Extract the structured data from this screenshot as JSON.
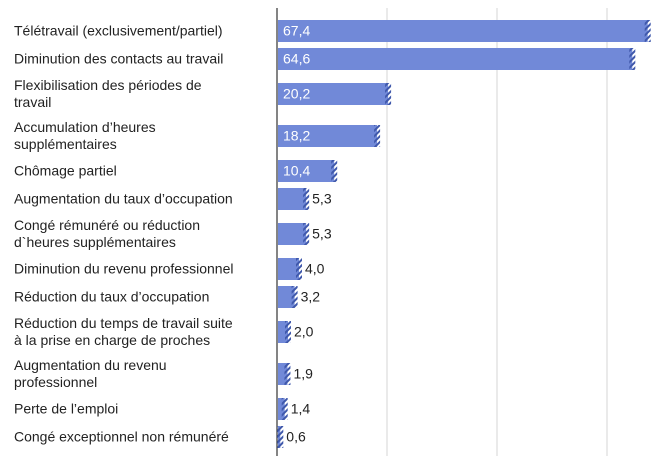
{
  "chart_data": {
    "type": "bar",
    "orientation": "horizontal",
    "categories": [
      "Télétravail (exclusivement/partiel)",
      "Diminution des contacts au travail",
      "Flexibilisation des périodes de\ntravail",
      "Accumulation d’heures\nsupplémentaires",
      "Chômage partiel",
      "Augmentation du taux d’occupation",
      "Congé rémunéré ou réduction\nd`heures supplémentaires",
      "Diminution du revenu professionnel",
      "Réduction du taux d’occupation",
      "Réduction du temps de travail suite\nà la prise en charge de proches",
      "Augmentation du revenu\nprofessionnel",
      "Perte de l’emploi",
      "Congé exceptionnel non rémunéré"
    ],
    "values": [
      67.4,
      64.6,
      20.2,
      18.2,
      10.4,
      5.3,
      5.3,
      4.0,
      3.2,
      2.0,
      1.9,
      1.4,
      0.6
    ],
    "value_labels": [
      "67,4",
      "64,6",
      "20,2",
      "18,2",
      "10,4",
      "5,3",
      "5,3",
      "4,0",
      "3,2",
      "2,0",
      "1,9",
      "1,4",
      "0,6"
    ],
    "color": "#7189d8",
    "hatch_color": "#3f58ab",
    "xlim": [
      0,
      70
    ],
    "xgrid": [
      20,
      40,
      60
    ],
    "grid": true
  }
}
